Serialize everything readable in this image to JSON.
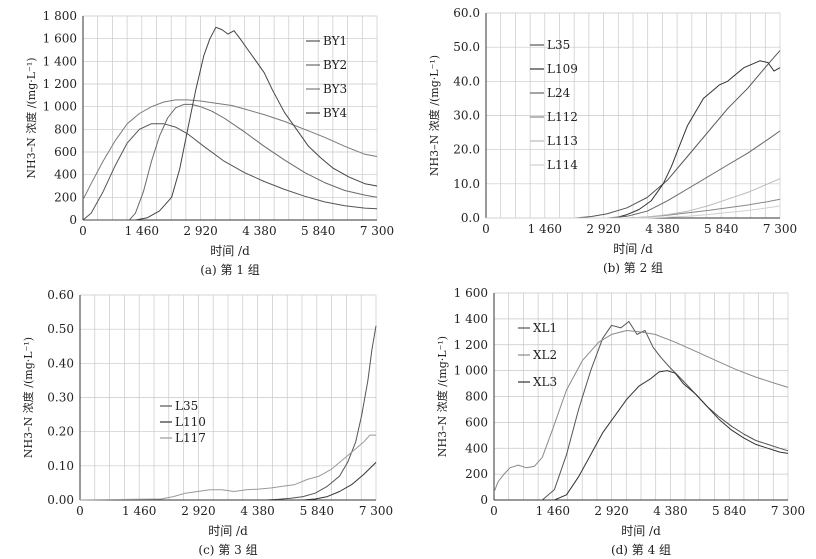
{
  "chart_data": [
    {
      "type": "line",
      "caption": "(a) 第 1 组",
      "xlabel": "时间 /d",
      "ylabel": "NH3–N 浓度 /(mg·L⁻¹)",
      "xlim": [
        0,
        7300
      ],
      "ylim": [
        0,
        1800
      ],
      "xticks": [
        0,
        1460,
        2920,
        4380,
        5840,
        7300
      ],
      "xtick_labels": [
        "0",
        "1 460",
        "2 920",
        "4 380",
        "5 840",
        "7 300"
      ],
      "yticks": [
        0,
        200,
        400,
        600,
        800,
        1000,
        1200,
        1400,
        1600,
        1800
      ],
      "ytick_labels": [
        "0",
        "200",
        "400",
        "600",
        "800",
        "1 000",
        "1 200",
        "1 400",
        "1 600",
        "1 800"
      ],
      "grid": true,
      "legend_position": "top-right",
      "series": [
        {
          "name": "BY1",
          "color": "#555555",
          "x": [
            0,
            200,
            500,
            800,
            1100,
            1400,
            1700,
            2000,
            2300,
            2600,
            3000,
            3500,
            4000,
            4500,
            5000,
            5500,
            6000,
            6500,
            7000,
            7300
          ],
          "y": [
            0,
            60,
            250,
            480,
            680,
            800,
            850,
            850,
            820,
            760,
            650,
            520,
            420,
            340,
            270,
            210,
            160,
            125,
            105,
            100
          ]
        },
        {
          "name": "BY2",
          "color": "#6a6a6a",
          "x": [
            0,
            1150,
            1300,
            1500,
            1700,
            1900,
            2100,
            2300,
            2500,
            2700,
            2920,
            3200,
            3500,
            4000,
            4500,
            5000,
            5500,
            6000,
            6500,
            7000,
            7300
          ],
          "y": [
            0,
            0,
            60,
            250,
            520,
            740,
            900,
            990,
            1020,
            1020,
            1000,
            960,
            900,
            780,
            650,
            530,
            420,
            330,
            260,
            220,
            200
          ]
        },
        {
          "name": "BY3",
          "color": "#7a7a7a",
          "x": [
            0,
            200,
            500,
            800,
            1100,
            1400,
            1700,
            2000,
            2300,
            2600,
            2920,
            3300,
            3700,
            4000,
            4500,
            5000,
            5500,
            6000,
            6500,
            7000,
            7300
          ],
          "y": [
            180,
            320,
            520,
            700,
            850,
            940,
            1000,
            1040,
            1060,
            1060,
            1050,
            1030,
            1010,
            980,
            930,
            870,
            800,
            730,
            650,
            580,
            560
          ]
        },
        {
          "name": "BY4",
          "color": "#444444",
          "x": [
            0,
            1300,
            1600,
            1900,
            2200,
            2400,
            2600,
            2800,
            3000,
            3150,
            3300,
            3450,
            3600,
            3750,
            3900,
            4100,
            4300,
            4500,
            4700,
            5000,
            5300,
            5600,
            5900,
            6200,
            6600,
            7000,
            7300
          ],
          "y": [
            0,
            0,
            20,
            80,
            200,
            450,
            800,
            1150,
            1450,
            1600,
            1700,
            1680,
            1640,
            1670,
            1600,
            1500,
            1400,
            1300,
            1150,
            950,
            800,
            650,
            550,
            460,
            380,
            320,
            300
          ]
        }
      ]
    },
    {
      "type": "line",
      "caption": "(b) 第 2 组",
      "xlabel": "时间 /d",
      "ylabel": "NH3–N 浓度 /(mg·L⁻¹)",
      "xlim": [
        0,
        7300
      ],
      "ylim": [
        0,
        60
      ],
      "xticks": [
        0,
        1460,
        2920,
        4380,
        5840,
        7300
      ],
      "xtick_labels": [
        "0",
        "1 460",
        "2 920",
        "4 380",
        "5 840",
        "7 300"
      ],
      "yticks": [
        0,
        10,
        20,
        30,
        40,
        50,
        60
      ],
      "ytick_labels": [
        "0.0",
        "10.0",
        "20.0",
        "30.0",
        "40.0",
        "50.0",
        "60.0"
      ],
      "grid": true,
      "legend_position": "top-left",
      "series": [
        {
          "name": "L35",
          "color": "#555555",
          "x": [
            0,
            2200,
            2600,
            3000,
            3500,
            4000,
            4500,
            5000,
            5500,
            6000,
            6500,
            7000,
            7300
          ],
          "y": [
            0,
            0,
            0.4,
            1.2,
            3,
            6,
            11,
            18,
            25,
            32,
            38,
            45,
            49
          ]
        },
        {
          "name": "L109",
          "color": "#333333",
          "x": [
            0,
            3200,
            3500,
            3800,
            4100,
            4400,
            4600,
            4800,
            5000,
            5200,
            5400,
            5600,
            5800,
            6000,
            6200,
            6400,
            6600,
            6800,
            7000,
            7150,
            7300
          ],
          "y": [
            0,
            0,
            1,
            2.5,
            5,
            10,
            15,
            21,
            27,
            31,
            35,
            37,
            39,
            40,
            42,
            44,
            45,
            46,
            45.5,
            43,
            44
          ]
        },
        {
          "name": "L24",
          "color": "#666666",
          "x": [
            0,
            3000,
            3500,
            4000,
            4500,
            5000,
            5500,
            6000,
            6500,
            7000,
            7300
          ],
          "y": [
            0,
            0,
            0.5,
            2,
            5,
            8.5,
            12,
            15.5,
            19,
            23,
            25.5
          ]
        },
        {
          "name": "L112",
          "color": "#888888",
          "x": [
            0,
            3500,
            4000,
            4500,
            5000,
            5500,
            6000,
            6500,
            7000,
            7300
          ],
          "y": [
            0,
            0,
            0.3,
            0.8,
            1.5,
            2.2,
            3,
            3.8,
            4.8,
            5.5
          ]
        },
        {
          "name": "L113",
          "color": "#bbbbbb",
          "x": [
            0,
            3500,
            4000,
            4500,
            5000,
            5500,
            6000,
            6500,
            7000,
            7300
          ],
          "y": [
            0,
            0,
            0.3,
            1,
            2,
            3.5,
            5.5,
            7.5,
            10,
            11.5
          ]
        },
        {
          "name": "L114",
          "color": "#d0d0d0",
          "x": [
            0,
            4000,
            4500,
            5000,
            5500,
            6000,
            6500,
            7000,
            7300
          ],
          "y": [
            0,
            0,
            0.2,
            0.5,
            1,
            1.6,
            2.2,
            3,
            3.5
          ]
        }
      ]
    },
    {
      "type": "line",
      "caption": "(c) 第 3 组",
      "xlabel": "时间 /d",
      "ylabel": "NH3–N 浓度 /(mg·L⁻¹)",
      "xlim": [
        0,
        7300
      ],
      "ylim": [
        0,
        0.6
      ],
      "xticks": [
        0,
        1460,
        2920,
        4380,
        5840,
        7300
      ],
      "xtick_labels": [
        "0",
        "1 460",
        "2 920",
        "4 380",
        "5 840",
        "7 300"
      ],
      "yticks": [
        0,
        0.1,
        0.2,
        0.3,
        0.4,
        0.5,
        0.6
      ],
      "ytick_labels": [
        "0.00",
        "0.10",
        "0.20",
        "0.30",
        "0.40",
        "0.50",
        "0.60"
      ],
      "grid": true,
      "legend_position": "center-left",
      "series": [
        {
          "name": "L35",
          "color": "#555555",
          "x": [
            0,
            1000,
            1300,
            1600,
            1900,
            2200,
            2500,
            2800,
            3100,
            3400,
            3700,
            4000,
            4300,
            4600,
            4900,
            5200,
            5500,
            5800,
            6100,
            6400,
            6600,
            6800,
            6950,
            7100,
            7200,
            7300
          ],
          "y": [
            0,
            0,
            0,
            0,
            0,
            0,
            0,
            0,
            0,
            0,
            0,
            0,
            0,
            0,
            0.002,
            0.005,
            0.01,
            0.02,
            0.04,
            0.07,
            0.11,
            0.17,
            0.25,
            0.35,
            0.44,
            0.51
          ]
        },
        {
          "name": "L110",
          "color": "#333333",
          "x": [
            0,
            5500,
            5800,
            6100,
            6400,
            6700,
            7000,
            7300
          ],
          "y": [
            0,
            0,
            0.003,
            0.01,
            0.025,
            0.045,
            0.075,
            0.11
          ]
        },
        {
          "name": "L117",
          "color": "#999999",
          "x": [
            0,
            2000,
            2300,
            2600,
            2900,
            3200,
            3500,
            3800,
            4100,
            4400,
            4700,
            5000,
            5300,
            5600,
            5900,
            6200,
            6500,
            6800,
            7000,
            7150,
            7300
          ],
          "y": [
            0,
            0.003,
            0.01,
            0.02,
            0.025,
            0.03,
            0.03,
            0.025,
            0.03,
            0.032,
            0.035,
            0.04,
            0.045,
            0.06,
            0.07,
            0.09,
            0.12,
            0.15,
            0.17,
            0.19,
            0.19
          ]
        }
      ]
    },
    {
      "type": "line",
      "caption": "(d) 第 4 组",
      "xlabel": "时间 /d",
      "ylabel": "NH3–N 浓度 /(mg·L⁻¹)",
      "xlim": [
        0,
        7300
      ],
      "ylim": [
        0,
        1600
      ],
      "xticks": [
        0,
        1460,
        2920,
        4380,
        5840,
        7300
      ],
      "xtick_labels": [
        "0",
        "1 460",
        "2 920",
        "4 380",
        "5 840",
        "7 300"
      ],
      "yticks": [
        0,
        200,
        400,
        600,
        800,
        1000,
        1200,
        1400,
        1600
      ],
      "ytick_labels": [
        "0",
        "200",
        "400",
        "600",
        "800",
        "1 000",
        "1 200",
        "1 400",
        "1 600"
      ],
      "grid": true,
      "legend_position": "top-left",
      "series": [
        {
          "name": "XL1",
          "color": "#555555",
          "x": [
            0,
            1200,
            1500,
            1800,
            2100,
            2400,
            2700,
            2920,
            3150,
            3350,
            3550,
            3750,
            3950,
            4150,
            4380,
            4700,
            5000,
            5300,
            5600,
            5900,
            6200,
            6500,
            6800,
            7100,
            7300
          ],
          "y": [
            0,
            0,
            80,
            350,
            700,
            1000,
            1250,
            1350,
            1330,
            1380,
            1280,
            1310,
            1180,
            1100,
            1020,
            920,
            820,
            720,
            640,
            570,
            510,
            460,
            430,
            400,
            380
          ]
        },
        {
          "name": "XL2",
          "color": "#8a8a8a",
          "x": [
            0,
            100,
            250,
            400,
            600,
            800,
            1000,
            1200,
            1460,
            1800,
            2200,
            2600,
            2920,
            3300,
            3600,
            4000,
            4500,
            5000,
            5500,
            6000,
            6500,
            7000,
            7300
          ],
          "y": [
            60,
            140,
            200,
            250,
            270,
            250,
            260,
            330,
            550,
            850,
            1080,
            1220,
            1280,
            1310,
            1300,
            1280,
            1220,
            1150,
            1080,
            1010,
            950,
            900,
            870
          ]
        },
        {
          "name": "XL3",
          "color": "#333333",
          "x": [
            0,
            1500,
            1800,
            2100,
            2400,
            2700,
            3000,
            3300,
            3600,
            3900,
            4100,
            4300,
            4500,
            4700,
            5000,
            5300,
            5600,
            5900,
            6200,
            6500,
            6800,
            7100,
            7300
          ],
          "y": [
            0,
            0,
            40,
            180,
            350,
            520,
            650,
            780,
            880,
            940,
            990,
            1000,
            980,
            900,
            820,
            720,
            620,
            540,
            480,
            430,
            400,
            370,
            360
          ]
        }
      ]
    }
  ]
}
